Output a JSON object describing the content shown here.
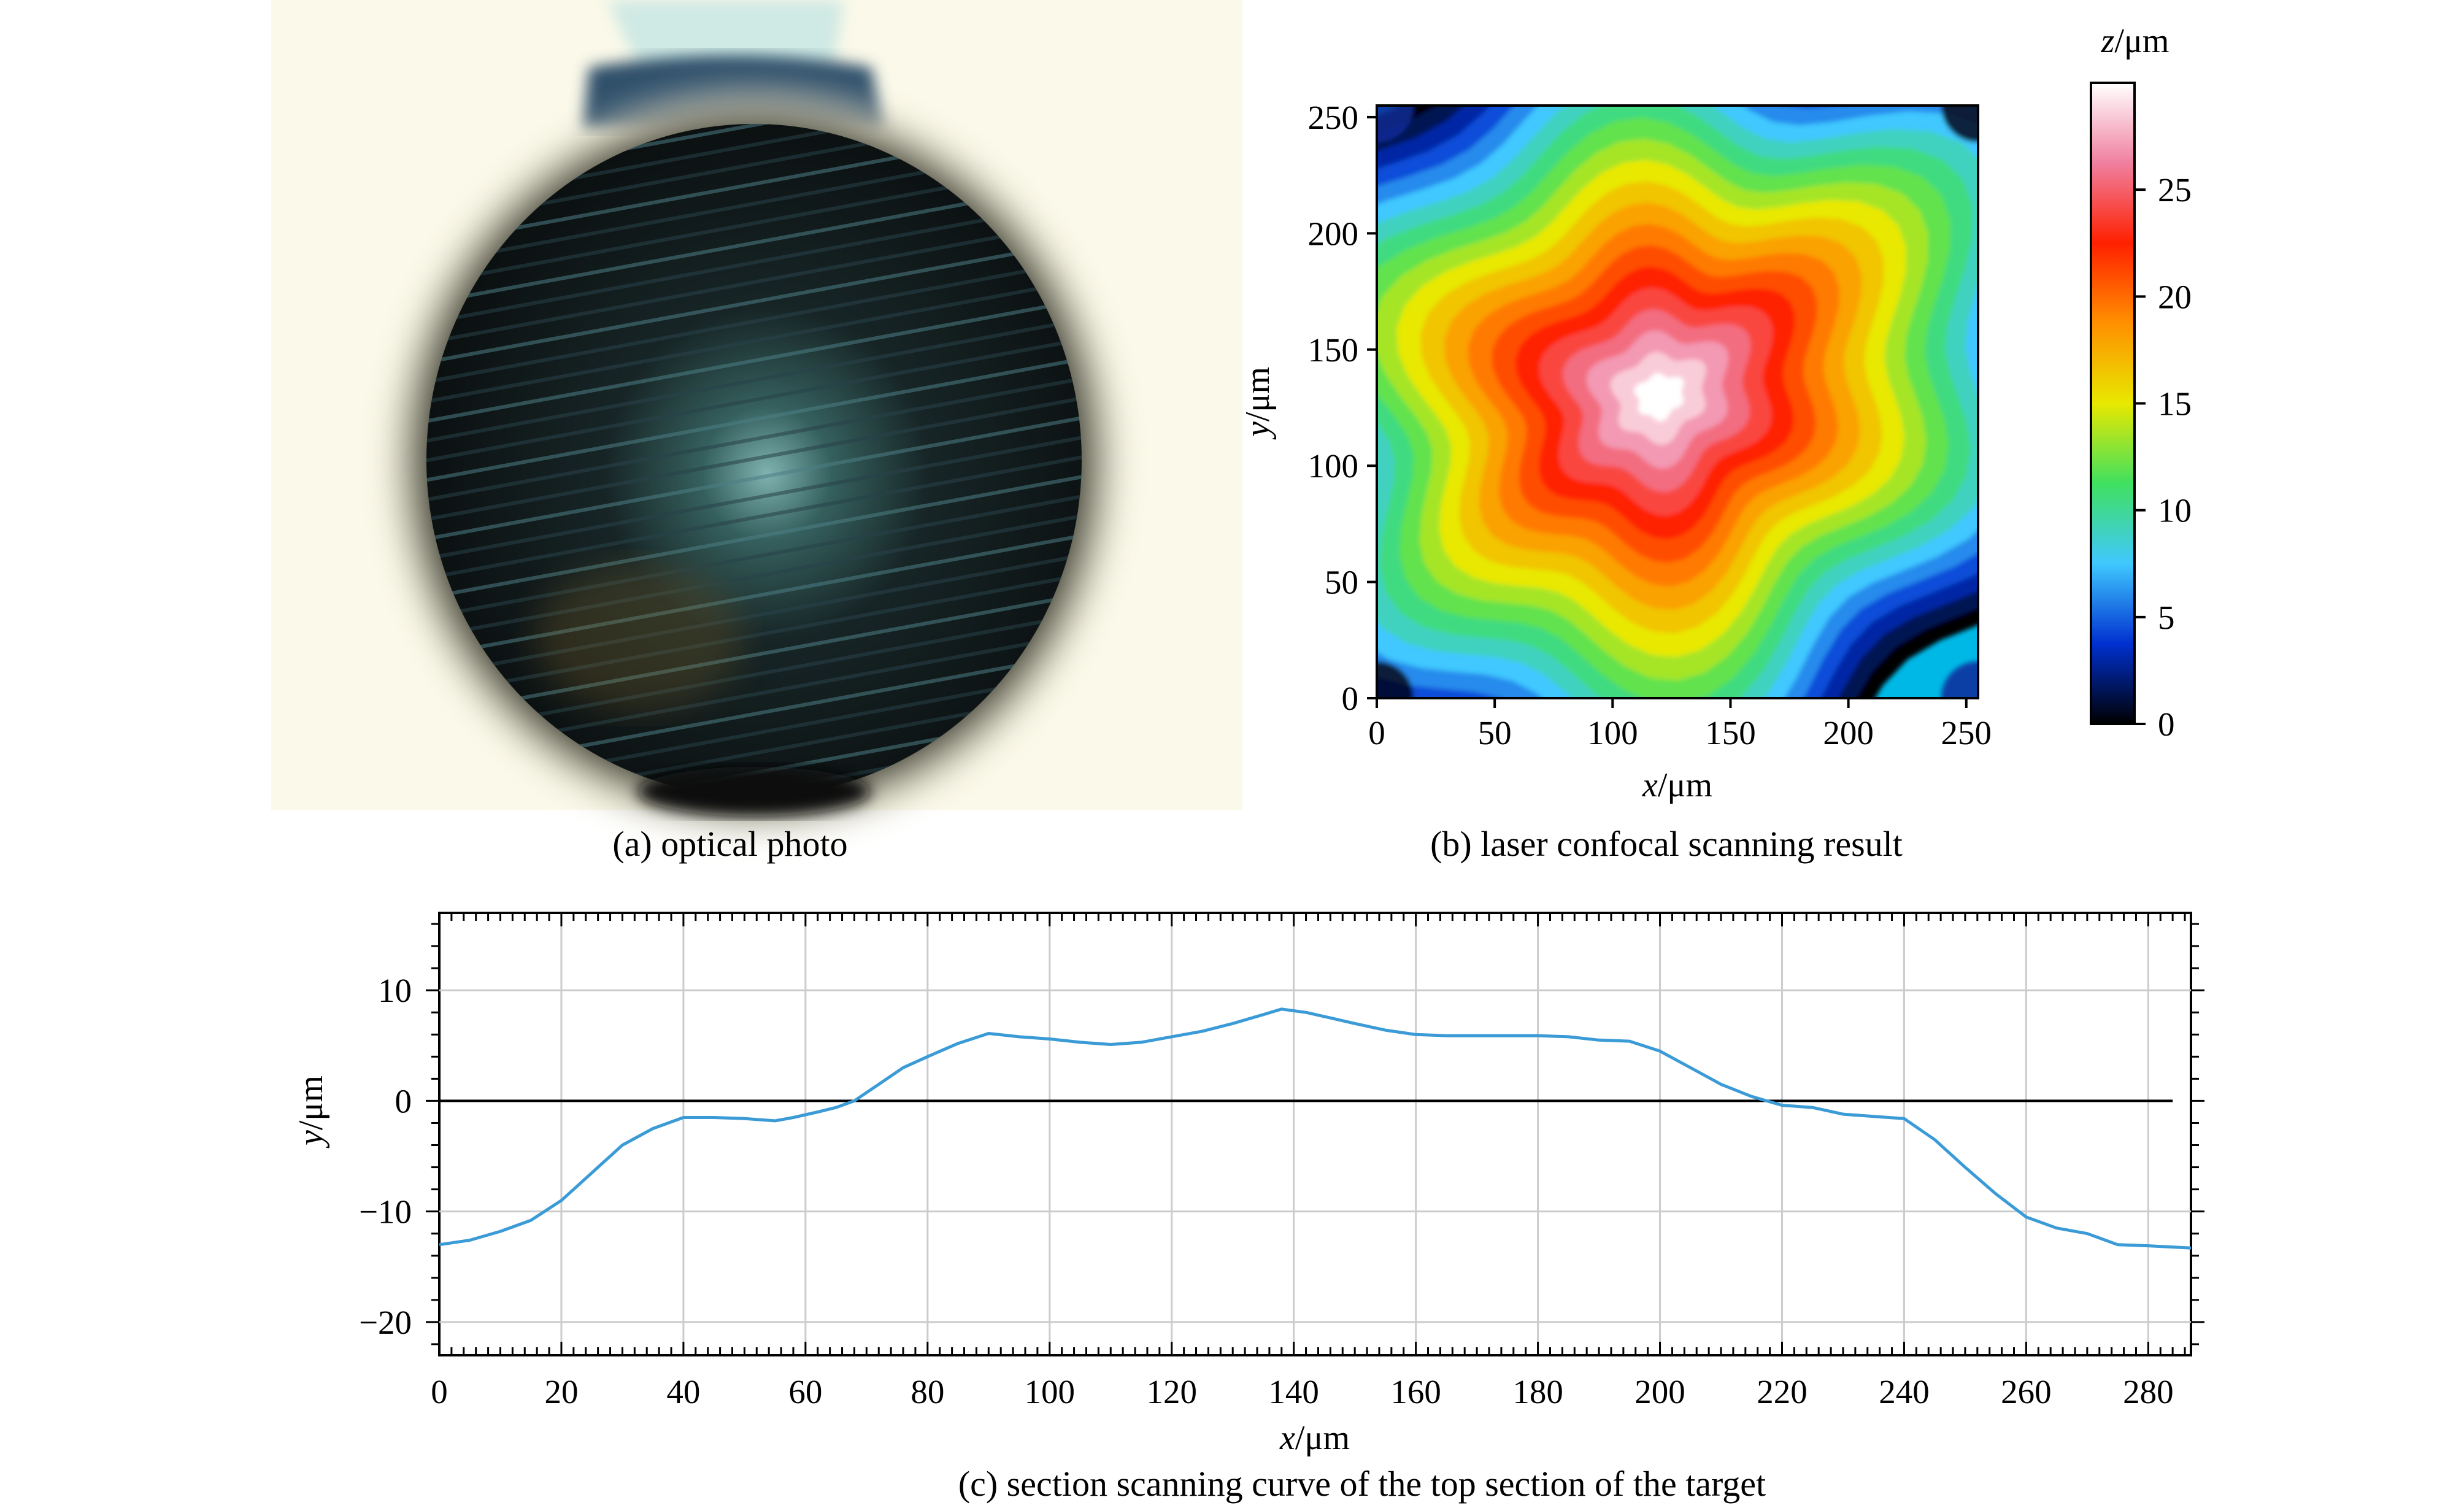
{
  "panels": {
    "a": {
      "caption": "(a) optical photo",
      "image_content": "dark-sphere-target-on-cream-background"
    },
    "b": {
      "caption": "(b) laser confocal scanning result",
      "xlabel_var": "x",
      "xlabel_unit": "/μm",
      "ylabel_var": "y",
      "ylabel_unit": "/μm",
      "xticks": [
        "0",
        "50",
        "100",
        "150",
        "200",
        "250"
      ],
      "yticks": [
        "0",
        "50",
        "100",
        "150",
        "200",
        "250"
      ],
      "colorbar": {
        "label_var": "z",
        "label_unit": "/μm",
        "ticks": [
          "0",
          "5",
          "10",
          "15",
          "20",
          "25"
        ],
        "range": [
          0,
          30
        ],
        "colors": [
          "#000000",
          "#0030d0",
          "#40c8ff",
          "#40e060",
          "#e8e800",
          "#ff9000",
          "#ff2000",
          "#f080a0",
          "#ffffff"
        ]
      }
    },
    "c": {
      "caption": "(c) section scanning curve of the top section of the target",
      "xlabel_var": "x",
      "xlabel_unit": "/μm",
      "ylabel_var": "y",
      "ylabel_unit": "/μm",
      "xticks": [
        "0",
        "20",
        "40",
        "60",
        "80",
        "100",
        "120",
        "140",
        "160",
        "180",
        "200",
        "220",
        "240",
        "260",
        "280"
      ],
      "yticks": [
        "10",
        "0",
        "−10",
        "−20"
      ]
    }
  },
  "chart_data": [
    {
      "type": "heatmap",
      "xlabel": "x/μm",
      "ylabel": "y/μm",
      "zlabel": "z/μm",
      "xlim": [
        0,
        255
      ],
      "ylim": [
        0,
        255
      ],
      "zlim": [
        0,
        30
      ],
      "description_of_field": "peak ~29 at (120,130); contours roughly concentric, ~0 at corners",
      "peak": {
        "x": 120,
        "y": 130,
        "z": 29
      },
      "corner_values": {
        "top_left": 2,
        "top_right": 1,
        "bottom_left": 1,
        "bottom_right": 5
      }
    },
    {
      "type": "line",
      "xlabel": "x/μm",
      "ylabel": "y/μm",
      "xlim": [
        0,
        287
      ],
      "ylim": [
        -23,
        17
      ],
      "grid": true,
      "reference_line": 0,
      "series": [
        {
          "color": "#3b9bd6",
          "x": [
            0,
            5,
            10,
            15,
            20,
            25,
            30,
            35,
            40,
            45,
            50,
            55,
            58,
            62,
            65,
            68,
            72,
            76,
            80,
            85,
            90,
            95,
            100,
            105,
            110,
            115,
            120,
            125,
            130,
            135,
            138,
            142,
            146,
            150,
            155,
            160,
            165,
            170,
            175,
            180,
            185,
            190,
            195,
            200,
            205,
            210,
            215,
            220,
            225,
            230,
            235,
            240,
            245,
            250,
            255,
            260,
            265,
            270,
            275,
            280,
            287
          ],
          "y": [
            -13,
            -12.6,
            -11.8,
            -10.8,
            -9,
            -6.5,
            -4,
            -2.5,
            -1.5,
            -1.5,
            -1.6,
            -1.8,
            -1.5,
            -1,
            -0.6,
            0,
            1.5,
            3,
            4,
            5.2,
            6.1,
            5.8,
            5.6,
            5.3,
            5.1,
            5.3,
            5.8,
            6.3,
            7,
            7.8,
            8.3,
            8,
            7.5,
            7,
            6.4,
            6,
            5.9,
            5.9,
            5.9,
            5.9,
            5.8,
            5.5,
            5.4,
            4.5,
            3,
            1.5,
            0.4,
            -0.4,
            -0.6,
            -1.2,
            -1.4,
            -1.6,
            -3.5,
            -6,
            -8.4,
            -10.5,
            -11.5,
            -12,
            -13,
            -13.1,
            -13.3
          ]
        }
      ]
    }
  ]
}
